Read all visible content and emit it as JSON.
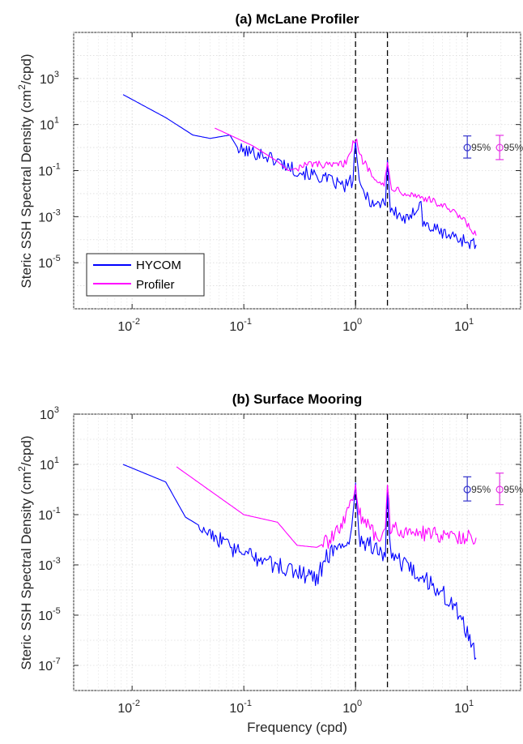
{
  "figure": {
    "xlabel": "Frequency (cpd)"
  },
  "chart_data": [
    {
      "type": "line",
      "title": "(a) McLane Profiler",
      "xlabel": "",
      "ylabel_prefix": "Steric SSH Spectral Density (cm",
      "ylabel_sup": "2",
      "ylabel_suffix": "/cpd)",
      "x_scale": "log",
      "y_scale": "log",
      "xlim": [
        0.003,
        30
      ],
      "ylim": [
        1e-07,
        100000.0
      ],
      "xticks": [
        0.01,
        0.1,
        1,
        10
      ],
      "xtick_labels": [
        {
          "base": "10",
          "exp": "-2"
        },
        {
          "base": "10",
          "exp": "-1"
        },
        {
          "base": "10",
          "exp": "0"
        },
        {
          "base": "10",
          "exp": "1"
        }
      ],
      "yticks": [
        1e-05,
        0.001,
        0.1,
        10,
        1000
      ],
      "ytick_labels": [
        {
          "base": "10",
          "exp": "-5"
        },
        {
          "base": "10",
          "exp": "-3"
        },
        {
          "base": "10",
          "exp": "-1"
        },
        {
          "base": "10",
          "exp": "1"
        },
        {
          "base": "10",
          "exp": "3"
        }
      ],
      "grid": true,
      "vlines": [
        1.0,
        1.93
      ],
      "legend": {
        "placement": "bottom-left",
        "entries": [
          "HYCOM",
          "Profiler"
        ]
      },
      "series": [
        {
          "name": "HYCOM",
          "color": "#0000ff",
          "anchors": [
            [
              0.0083,
              200
            ],
            [
              0.02,
              20
            ],
            [
              0.035,
              3.5
            ],
            [
              0.05,
              2.5
            ],
            [
              0.075,
              3.5
            ],
            [
              0.09,
              0.8
            ],
            [
              0.15,
              0.5
            ],
            [
              0.3,
              0.1
            ],
            [
              0.5,
              0.05
            ],
            [
              0.8,
              0.02
            ],
            [
              0.95,
              0.04
            ],
            [
              1.0,
              2.5
            ],
            [
              1.08,
              0.02
            ],
            [
              1.5,
              0.003
            ],
            [
              1.85,
              0.005
            ],
            [
              1.93,
              0.3
            ],
            [
              2.05,
              0.002
            ],
            [
              3.0,
              0.0006
            ],
            [
              3.85,
              0.006
            ],
            [
              4.0,
              0.0005
            ],
            [
              6.0,
              0.0002
            ],
            [
              9.0,
              0.0001
            ],
            [
              12,
              6e-05
            ]
          ],
          "noise_from": 0.09,
          "noise": 0.3
        },
        {
          "name": "Profiler",
          "color": "#ff00ff",
          "anchors": [
            [
              0.055,
              7
            ],
            [
              0.075,
              3.5
            ],
            [
              0.12,
              1.2
            ],
            [
              0.2,
              0.25
            ],
            [
              0.25,
              0.1
            ],
            [
              0.4,
              0.2
            ],
            [
              0.6,
              0.15
            ],
            [
              0.8,
              0.2
            ],
            [
              0.9,
              0.8
            ],
            [
              1.0,
              2.5
            ],
            [
              1.1,
              0.4
            ],
            [
              1.4,
              0.08
            ],
            [
              1.8,
              0.02
            ],
            [
              1.93,
              0.2
            ],
            [
              2.1,
              0.02
            ],
            [
              3.0,
              0.01
            ],
            [
              4.0,
              0.007
            ],
            [
              6.0,
              0.003
            ],
            [
              9.0,
              0.0008
            ],
            [
              12,
              0.00015
            ]
          ],
          "noise_from": 0.3,
          "noise": 0.18
        }
      ],
      "confidence": [
        {
          "x": 10,
          "y": 1,
          "lo": 0.35,
          "hi": 3.2,
          "label": "95%",
          "color": "#3333cc"
        },
        {
          "x": 19.5,
          "y": 1,
          "lo": 0.3,
          "hi": 3.4,
          "label": "95%",
          "color": "#e633e6"
        }
      ]
    },
    {
      "type": "line",
      "title": "(b) Surface Mooring",
      "xlabel": "Frequency (cpd)",
      "ylabel_prefix": "Steric SSH Spectral Density (cm",
      "ylabel_sup": "2",
      "ylabel_suffix": "/cpd)",
      "x_scale": "log",
      "y_scale": "log",
      "xlim": [
        0.003,
        30
      ],
      "ylim": [
        1e-08,
        1000
      ],
      "xticks": [
        0.01,
        0.1,
        1,
        10
      ],
      "xtick_labels": [
        {
          "base": "10",
          "exp": "-2"
        },
        {
          "base": "10",
          "exp": "-1"
        },
        {
          "base": "10",
          "exp": "0"
        },
        {
          "base": "10",
          "exp": "1"
        }
      ],
      "yticks": [
        1e-07,
        1e-05,
        0.001,
        0.1,
        10,
        1000
      ],
      "ytick_labels": [
        {
          "base": "10",
          "exp": "-7"
        },
        {
          "base": "10",
          "exp": "-5"
        },
        {
          "base": "10",
          "exp": "-3"
        },
        {
          "base": "10",
          "exp": "-1"
        },
        {
          "base": "10",
          "exp": "1"
        },
        {
          "base": "10",
          "exp": "3"
        }
      ],
      "grid": true,
      "vlines": [
        1.0,
        1.93
      ],
      "series": [
        {
          "name": "HYCOM",
          "color": "#0000ff",
          "anchors": [
            [
              0.0083,
              10
            ],
            [
              0.02,
              2
            ],
            [
              0.03,
              0.08
            ],
            [
              0.05,
              0.02
            ],
            [
              0.08,
              0.004
            ],
            [
              0.15,
              0.0015
            ],
            [
              0.3,
              0.0005
            ],
            [
              0.45,
              0.0003
            ],
            [
              0.55,
              0.002
            ],
            [
              0.7,
              0.006
            ],
            [
              0.9,
              0.01
            ],
            [
              1.0,
              1.0
            ],
            [
              1.1,
              0.01
            ],
            [
              1.5,
              0.005
            ],
            [
              1.85,
              0.002
            ],
            [
              1.93,
              1.0
            ],
            [
              2.05,
              0.003
            ],
            [
              2.8,
              0.0008
            ],
            [
              4.0,
              0.0003
            ],
            [
              6.0,
              8e-05
            ],
            [
              8.0,
              1.5e-05
            ],
            [
              10,
              2e-06
            ],
            [
              12,
              2e-07
            ]
          ],
          "noise_from": 0.04,
          "noise": 0.35
        },
        {
          "name": "Profiler",
          "color": "#ff00ff",
          "anchors": [
            [
              0.025,
              8
            ],
            [
              0.06,
              0.5
            ],
            [
              0.1,
              0.1
            ],
            [
              0.2,
              0.05
            ],
            [
              0.3,
              0.006
            ],
            [
              0.45,
              0.005
            ],
            [
              0.6,
              0.01
            ],
            [
              0.8,
              0.05
            ],
            [
              1.0,
              1.2
            ],
            [
              1.1,
              0.1
            ],
            [
              1.5,
              0.015
            ],
            [
              1.85,
              0.02
            ],
            [
              1.93,
              1.2
            ],
            [
              2.05,
              0.03
            ],
            [
              3.0,
              0.02
            ],
            [
              6.0,
              0.015
            ],
            [
              12,
              0.012
            ]
          ],
          "noise_from": 0.5,
          "noise": 0.3
        }
      ],
      "confidence": [
        {
          "x": 10,
          "y": 1,
          "lo": 0.35,
          "hi": 3.2,
          "label": "95%",
          "color": "#3333cc"
        },
        {
          "x": 19.5,
          "y": 1,
          "lo": 0.25,
          "hi": 4.5,
          "label": "95%",
          "color": "#e633e6"
        }
      ]
    }
  ]
}
